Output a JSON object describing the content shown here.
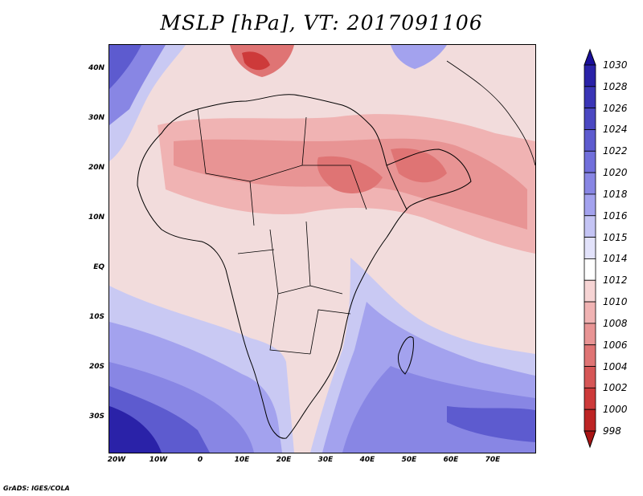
{
  "title": "MSLP [hPa], VT: 2017091106",
  "credit": "GrADS: IGES/COLA",
  "axes": {
    "lat_labels": [
      "40N",
      "30N",
      "20N",
      "10N",
      "EQ",
      "10S",
      "20S",
      "30S"
    ],
    "lon_labels": [
      "20W",
      "10W",
      "0",
      "10E",
      "20E",
      "30E",
      "40E",
      "50E",
      "60E",
      "70E"
    ]
  },
  "colorbar": {
    "levels": [
      "1030",
      "1028",
      "1026",
      "1024",
      "1022",
      "1020",
      "1018",
      "1016",
      "1015",
      "1014",
      "1012",
      "1010",
      "1008",
      "1006",
      "1004",
      "1002",
      "1000",
      "998"
    ],
    "colors": [
      "#1a0f9a",
      "#2a22a8",
      "#3a35b6",
      "#4b48c2",
      "#5d5bcf",
      "#716fdb",
      "#8886e4",
      "#a3a2ee",
      "#c4c4f4",
      "#e2e2fa",
      "#ffffff",
      "#f6d4d4",
      "#f0b3b3",
      "#e89494",
      "#df7474",
      "#d65656",
      "#cd3a3a",
      "#bd2424",
      "#a81414"
    ]
  },
  "map": {
    "field": "mean sea level pressure",
    "region": "Africa"
  }
}
